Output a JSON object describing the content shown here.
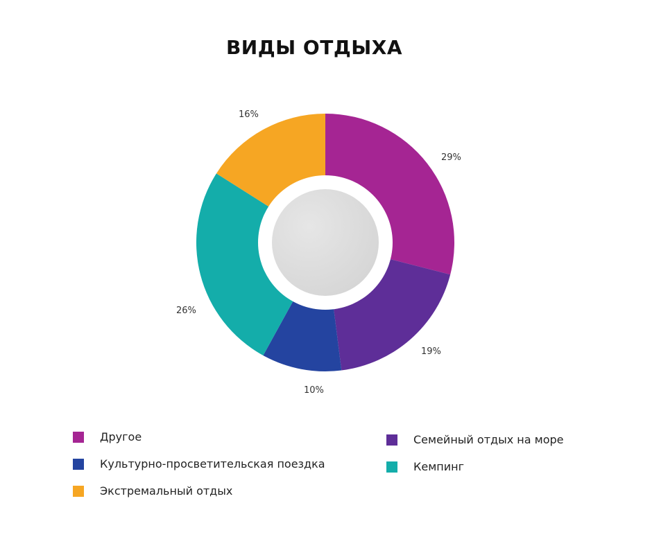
{
  "title": "ВИДЫ ОТДЫХА",
  "chart_data": {
    "type": "pie",
    "variant": "donut",
    "title": "ВИДЫ ОТДЫХА",
    "categories": [
      "Другое",
      "Семейный отдых на море",
      "Культурно-просветительская поездка",
      "Кемпинг",
      "Экстремальный отдых"
    ],
    "values": [
      29,
      19,
      10,
      26,
      16
    ],
    "unit": "%",
    "colors": [
      "#a52593",
      "#5e2e98",
      "#2444a0",
      "#14adaa",
      "#f6a623"
    ],
    "labels": [
      "29%",
      "19%",
      "10%",
      "26%",
      "16%"
    ],
    "legend_position": "bottom"
  },
  "legend": {
    "items": [
      {
        "label": "Другое",
        "color": "#a52593"
      },
      {
        "label": "Культурно-просветительская поездка",
        "color": "#2444a0"
      },
      {
        "label": "Экстремальный отдых",
        "color": "#f6a623"
      },
      {
        "label": "Семейный отдых на море",
        "color": "#5e2e98"
      },
      {
        "label": "Кемпинг",
        "color": "#14adaa"
      }
    ]
  }
}
